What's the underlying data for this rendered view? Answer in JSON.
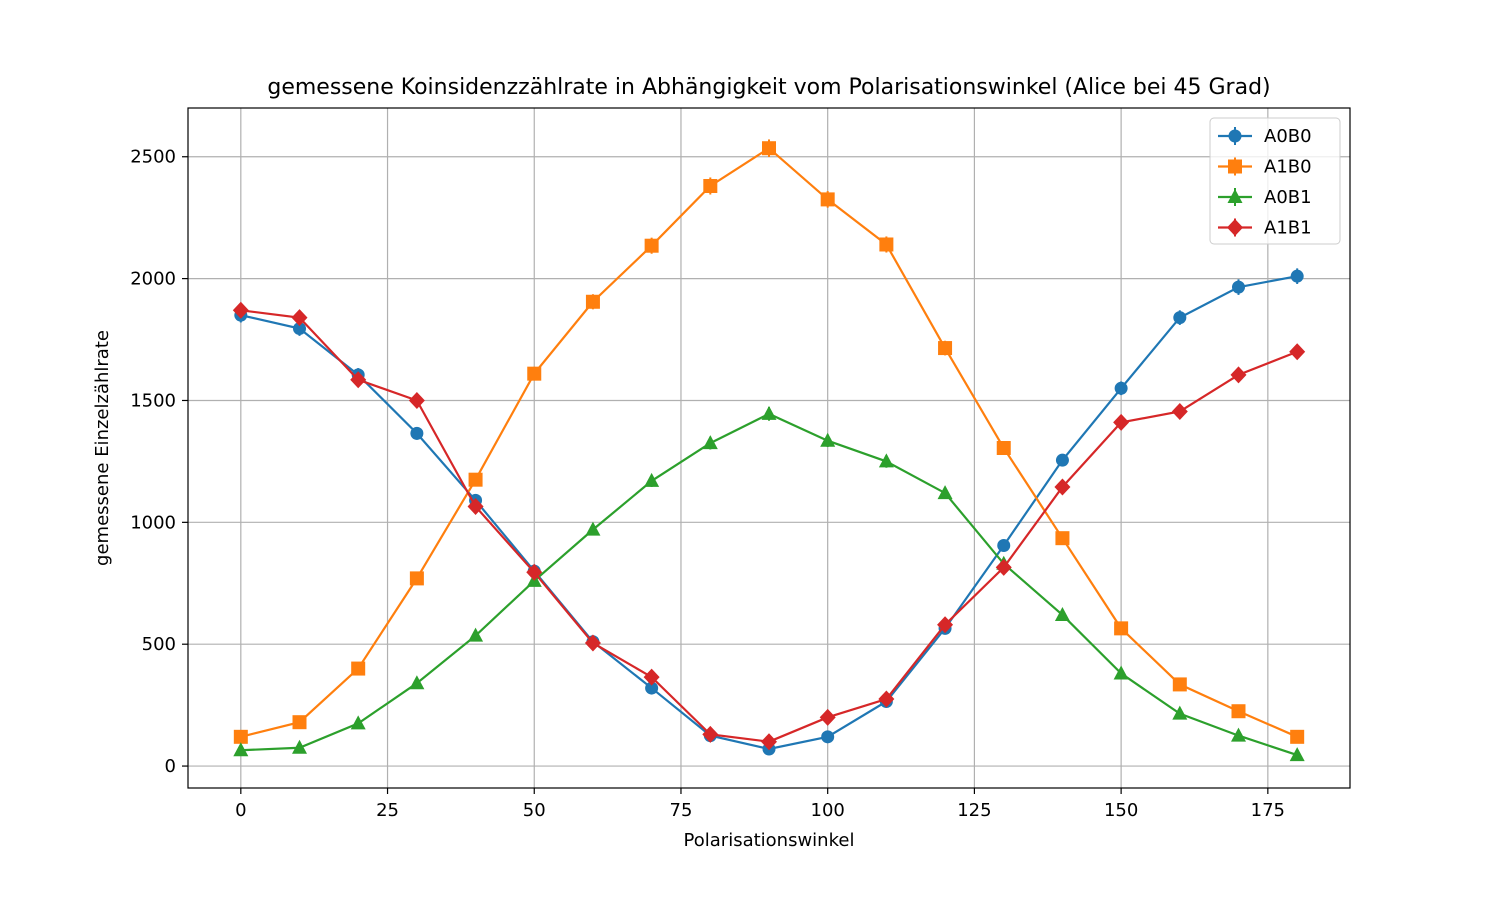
{
  "chart_data": {
    "type": "line",
    "title": "gemessene Koinsidenzzählrate in Abhängigkeit vom Polarisationswinkel (Alice bei 45 Grad)",
    "xlabel": "Polarisationswinkel",
    "ylabel": "gemessene Einzelzählrate",
    "xlim": [
      -9,
      189
    ],
    "ylim": [
      -90,
      2700
    ],
    "xticks": [
      0,
      25,
      50,
      75,
      100,
      125,
      150,
      175
    ],
    "yticks": [
      0,
      500,
      1000,
      1500,
      2000,
      2500
    ],
    "grid": true,
    "legend_position": "top-right",
    "x": [
      0,
      10,
      20,
      30,
      40,
      50,
      60,
      70,
      80,
      90,
      100,
      110,
      120,
      130,
      140,
      150,
      160,
      170,
      180
    ],
    "series": [
      {
        "name": "A0B0",
        "color": "#1f77b4",
        "marker": "circle",
        "values": [
          1850,
          1795,
          1605,
          1365,
          1090,
          800,
          510,
          320,
          125,
          70,
          120,
          265,
          565,
          905,
          1255,
          1550,
          1840,
          1965,
          2010
        ],
        "errors": [
          30,
          30,
          28,
          26,
          23,
          20,
          16,
          13,
          8,
          6,
          8,
          12,
          17,
          22,
          25,
          28,
          30,
          32,
          32
        ]
      },
      {
        "name": "A1B0",
        "color": "#ff7f0e",
        "marker": "square",
        "values": [
          120,
          180,
          400,
          770,
          1175,
          1610,
          1905,
          2135,
          2380,
          2535,
          2325,
          2140,
          1715,
          1305,
          935,
          565,
          335,
          225,
          120
        ],
        "errors": [
          8,
          10,
          14,
          20,
          24,
          28,
          31,
          33,
          35,
          36,
          34,
          33,
          30,
          26,
          22,
          17,
          13,
          11,
          8
        ]
      },
      {
        "name": "A0B1",
        "color": "#2ca02c",
        "marker": "triangle",
        "values": [
          65,
          75,
          175,
          340,
          535,
          760,
          970,
          1170,
          1325,
          1445,
          1335,
          1250,
          1120,
          830,
          620,
          380,
          215,
          125,
          45
        ],
        "errors": [
          6,
          6,
          10,
          14,
          17,
          20,
          22,
          25,
          26,
          28,
          26,
          26,
          24,
          21,
          18,
          14,
          11,
          8,
          5
        ]
      },
      {
        "name": "A1B1",
        "color": "#d62728",
        "marker": "diamond",
        "values": [
          1870,
          1840,
          1585,
          1500,
          1065,
          795,
          505,
          365,
          130,
          100,
          200,
          275,
          580,
          815,
          1145,
          1410,
          1455,
          1605,
          1700
        ],
        "errors": [
          30,
          30,
          28,
          27,
          23,
          20,
          16,
          14,
          8,
          7,
          10,
          12,
          17,
          20,
          24,
          26,
          27,
          28,
          29
        ]
      }
    ]
  }
}
